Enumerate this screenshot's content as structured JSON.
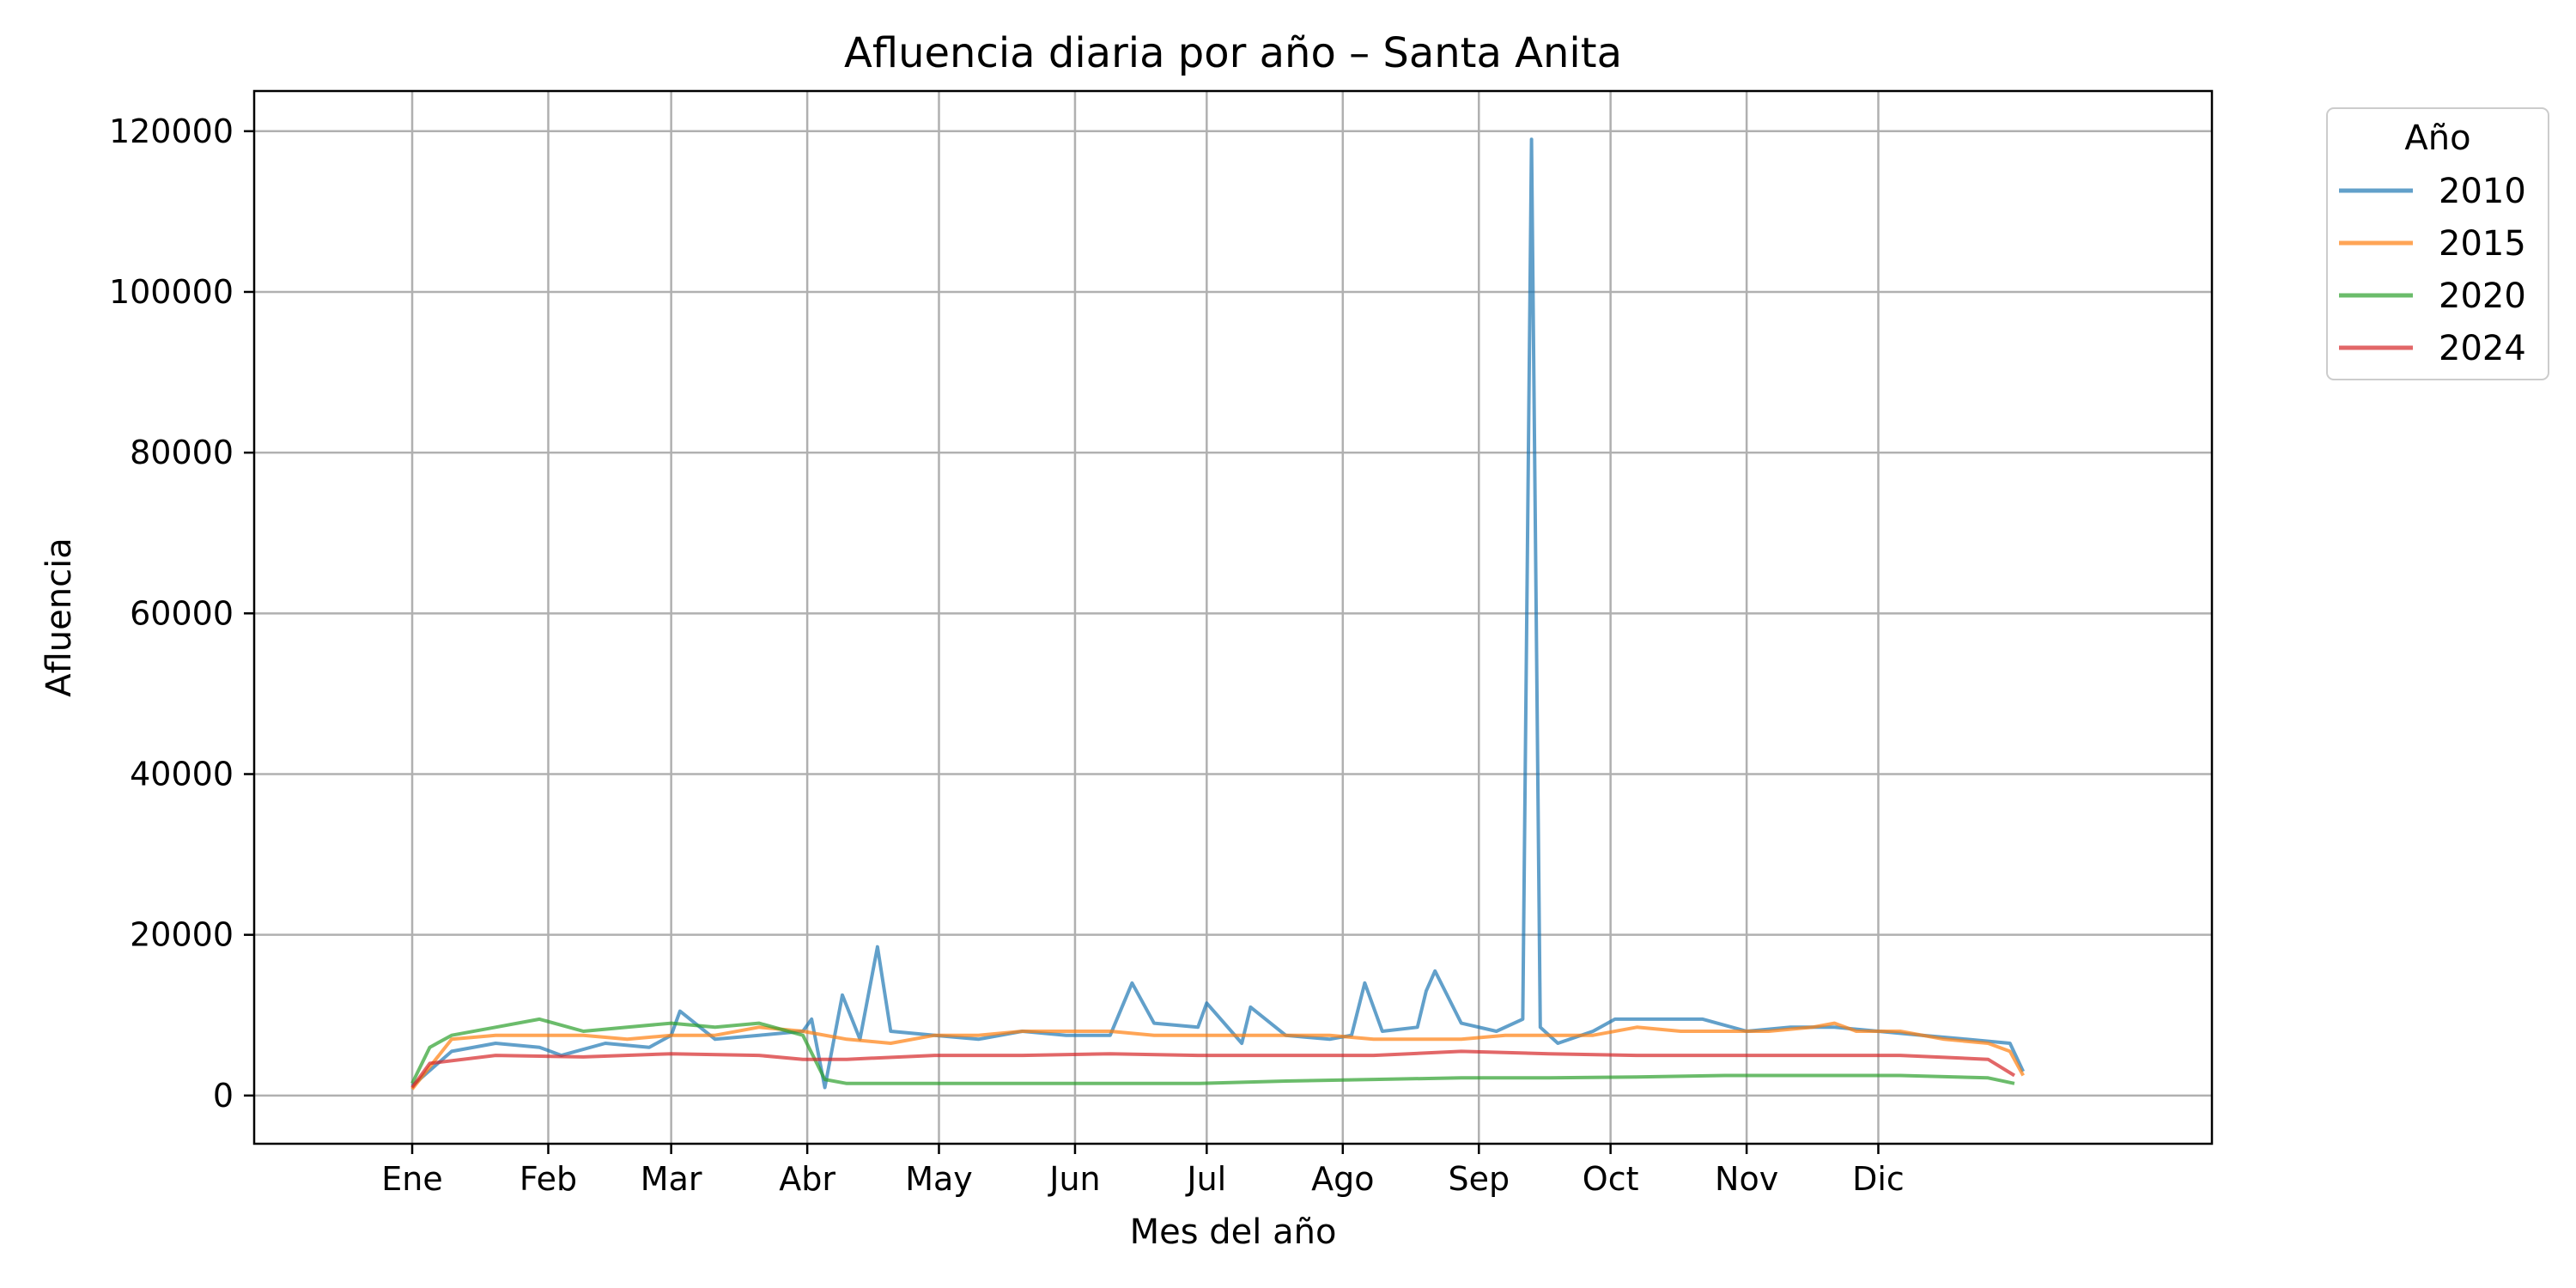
{
  "chart_data": {
    "type": "line",
    "title": "Afluencia diaria por año – Santa Anita",
    "xlabel": "Mes del año",
    "ylabel": "Afluencia",
    "x_unit": "día del año",
    "xlim": [
      -35,
      411
    ],
    "ylim": [
      -6000,
      125000
    ],
    "x_ticks": [
      {
        "day": 1,
        "label": "Ene"
      },
      {
        "day": 32,
        "label": "Feb"
      },
      {
        "day": 60,
        "label": "Mar"
      },
      {
        "day": 91,
        "label": "Abr"
      },
      {
        "day": 121,
        "label": "May"
      },
      {
        "day": 152,
        "label": "Jun"
      },
      {
        "day": 182,
        "label": "Jul"
      },
      {
        "day": 213,
        "label": "Ago"
      },
      {
        "day": 244,
        "label": "Sep"
      },
      {
        "day": 274,
        "label": "Oct"
      },
      {
        "day": 305,
        "label": "Nov"
      },
      {
        "day": 335,
        "label": "Dic"
      }
    ],
    "y_ticks": [
      0,
      20000,
      40000,
      60000,
      80000,
      100000,
      120000
    ],
    "grid": true,
    "legend": {
      "title": "Año",
      "placement": "outside-top-right"
    },
    "series": [
      {
        "name": "2010",
        "color": "#1f77b4",
        "points": [
          [
            1,
            1200
          ],
          [
            10,
            5500
          ],
          [
            20,
            6500
          ],
          [
            30,
            6000
          ],
          [
            35,
            5000
          ],
          [
            45,
            6500
          ],
          [
            55,
            6000
          ],
          [
            60,
            7500
          ],
          [
            62,
            10500
          ],
          [
            70,
            7000
          ],
          [
            80,
            7500
          ],
          [
            90,
            8000
          ],
          [
            92,
            9500
          ],
          [
            95,
            1000
          ],
          [
            99,
            12500
          ],
          [
            103,
            7000
          ],
          [
            107,
            18500
          ],
          [
            110,
            8000
          ],
          [
            120,
            7500
          ],
          [
            130,
            7000
          ],
          [
            140,
            8000
          ],
          [
            150,
            7500
          ],
          [
            160,
            7500
          ],
          [
            165,
            14000
          ],
          [
            170,
            9000
          ],
          [
            180,
            8500
          ],
          [
            182,
            11500
          ],
          [
            190,
            6500
          ],
          [
            192,
            11000
          ],
          [
            200,
            7500
          ],
          [
            210,
            7000
          ],
          [
            215,
            7500
          ],
          [
            218,
            14000
          ],
          [
            222,
            8000
          ],
          [
            230,
            8500
          ],
          [
            232,
            13000
          ],
          [
            234,
            15500
          ],
          [
            240,
            9000
          ],
          [
            248,
            8000
          ],
          [
            254,
            9500
          ],
          [
            256,
            119000
          ],
          [
            258,
            8500
          ],
          [
            262,
            6500
          ],
          [
            270,
            8000
          ],
          [
            275,
            9500
          ],
          [
            285,
            9500
          ],
          [
            295,
            9500
          ],
          [
            305,
            8000
          ],
          [
            315,
            8500
          ],
          [
            325,
            8500
          ],
          [
            335,
            8000
          ],
          [
            345,
            7500
          ],
          [
            355,
            7000
          ],
          [
            365,
            6500
          ],
          [
            368,
            3000
          ]
        ]
      },
      {
        "name": "2015",
        "color": "#ff7f0e",
        "points": [
          [
            1,
            800
          ],
          [
            10,
            7000
          ],
          [
            20,
            7500
          ],
          [
            30,
            7500
          ],
          [
            40,
            7500
          ],
          [
            50,
            7000
          ],
          [
            60,
            7500
          ],
          [
            70,
            7500
          ],
          [
            80,
            8500
          ],
          [
            90,
            8000
          ],
          [
            100,
            7000
          ],
          [
            110,
            6500
          ],
          [
            120,
            7500
          ],
          [
            130,
            7500
          ],
          [
            140,
            8000
          ],
          [
            150,
            8000
          ],
          [
            160,
            8000
          ],
          [
            170,
            7500
          ],
          [
            180,
            7500
          ],
          [
            190,
            7500
          ],
          [
            200,
            7500
          ],
          [
            210,
            7500
          ],
          [
            220,
            7000
          ],
          [
            230,
            7000
          ],
          [
            240,
            7000
          ],
          [
            250,
            7500
          ],
          [
            260,
            7500
          ],
          [
            270,
            7500
          ],
          [
            280,
            8500
          ],
          [
            290,
            8000
          ],
          [
            300,
            8000
          ],
          [
            310,
            8000
          ],
          [
            320,
            8500
          ],
          [
            325,
            9000
          ],
          [
            330,
            8000
          ],
          [
            340,
            8000
          ],
          [
            350,
            7000
          ],
          [
            360,
            6500
          ],
          [
            365,
            5500
          ],
          [
            368,
            2500
          ]
        ]
      },
      {
        "name": "2020",
        "color": "#2ca02c",
        "points": [
          [
            1,
            1500
          ],
          [
            5,
            6000
          ],
          [
            10,
            7500
          ],
          [
            20,
            8500
          ],
          [
            30,
            9500
          ],
          [
            40,
            8000
          ],
          [
            50,
            8500
          ],
          [
            60,
            9000
          ],
          [
            70,
            8500
          ],
          [
            80,
            9000
          ],
          [
            90,
            7500
          ],
          [
            95,
            2000
          ],
          [
            100,
            1500
          ],
          [
            120,
            1500
          ],
          [
            150,
            1500
          ],
          [
            180,
            1500
          ],
          [
            200,
            1800
          ],
          [
            220,
            2000
          ],
          [
            240,
            2200
          ],
          [
            260,
            2200
          ],
          [
            280,
            2300
          ],
          [
            300,
            2500
          ],
          [
            320,
            2500
          ],
          [
            340,
            2500
          ],
          [
            360,
            2200
          ],
          [
            366,
            1500
          ]
        ]
      },
      {
        "name": "2024",
        "color": "#d62728",
        "points": [
          [
            1,
            1000
          ],
          [
            5,
            4000
          ],
          [
            20,
            5000
          ],
          [
            40,
            4800
          ],
          [
            60,
            5200
          ],
          [
            80,
            5000
          ],
          [
            90,
            4500
          ],
          [
            100,
            4500
          ],
          [
            120,
            5000
          ],
          [
            140,
            5000
          ],
          [
            160,
            5200
          ],
          [
            180,
            5000
          ],
          [
            200,
            5000
          ],
          [
            220,
            5000
          ],
          [
            240,
            5500
          ],
          [
            260,
            5200
          ],
          [
            280,
            5000
          ],
          [
            300,
            5000
          ],
          [
            320,
            5000
          ],
          [
            340,
            5000
          ],
          [
            360,
            4500
          ],
          [
            366,
            2500
          ]
        ]
      }
    ]
  }
}
